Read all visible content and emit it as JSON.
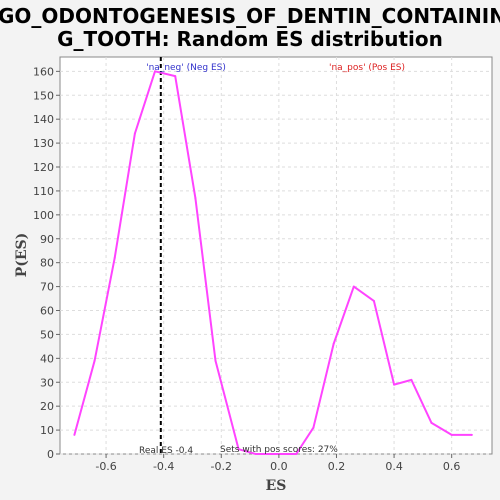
{
  "title_line1": "GO_ODONTOGENESIS_OF_DENTIN_CONTAININ",
  "title_line2": "G_TOOTH: Random ES distribution",
  "colors": {
    "background": "#f3f3f3",
    "plot_background": "#ffffff",
    "grid": "#dddddd",
    "line": "#ff44ff",
    "neg_label": "#3333cc",
    "pos_label": "#dd2222",
    "annotation": "#333333",
    "real_es_line": "#000000"
  },
  "annotations": {
    "neg_label": "'na_neg' (Neg ES)",
    "pos_label": "'na_pos' (Pos ES)",
    "real_es_text": "Real ES -0.4",
    "pos_score_text": "Sets with pos scores: 27%"
  },
  "chart_data": {
    "type": "line",
    "title": "GO_ODONTOGENESIS_OF_DENTIN_CONTAINING_TOOTH: Random ES distribution",
    "xlabel": "ES",
    "ylabel": "P(ES)",
    "xlim": [
      -0.76,
      0.74
    ],
    "ylim": [
      0,
      166
    ],
    "xticks": [
      -0.6,
      -0.4,
      -0.2,
      0.0,
      0.2,
      0.4,
      0.6
    ],
    "xtick_labels": [
      "-0.6",
      "-0.4",
      "-0.2",
      "0.0",
      "0.2",
      "0.4",
      "0.6"
    ],
    "yticks": [
      0,
      10,
      20,
      30,
      40,
      50,
      60,
      70,
      80,
      90,
      100,
      110,
      120,
      130,
      140,
      150,
      160
    ],
    "grid": true,
    "real_es": -0.41,
    "series": [
      {
        "x": [
          -0.71,
          -0.64,
          -0.57,
          -0.5,
          -0.43,
          -0.36,
          -0.29,
          -0.22,
          -0.14,
          -0.08,
          -0.01,
          0.06,
          0.12,
          0.19,
          0.26,
          0.33,
          0.4,
          0.46,
          0.53,
          0.6,
          0.67
        ],
        "y": [
          8,
          39,
          82,
          134,
          160,
          158,
          107,
          39,
          2,
          0,
          0,
          0,
          11,
          46,
          70,
          64,
          29,
          31,
          13,
          8,
          8
        ]
      }
    ]
  }
}
